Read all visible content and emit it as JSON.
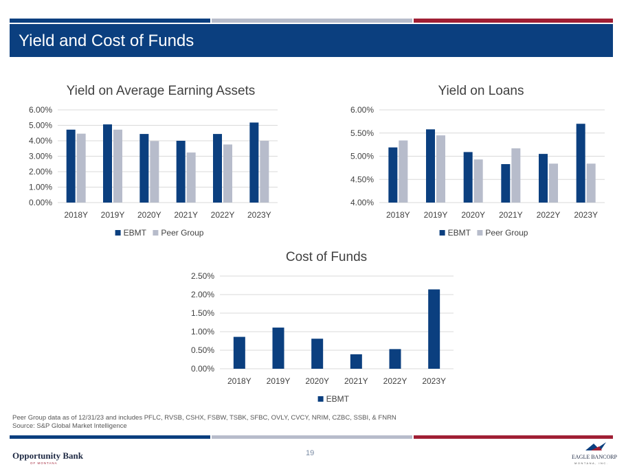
{
  "header": {
    "title": "Yield and Cost of Funds",
    "stripe_colors": [
      "#0b3f7f",
      "#b7bccb",
      "#a01f34"
    ]
  },
  "footnotes": {
    "peer_group": "Peer Group data as of 12/31/23 and includes PFLC, RVSB, CSHX, FSBW, TSBK, SFBC, OVLY, CVCY, NRIM, CZBC, SSBI, & FNRN",
    "source": "Source: S&P Global Market Intelligence"
  },
  "page_number": "19",
  "logos": {
    "left": {
      "name": "Opportunity Bank",
      "sub": "OF MONTANA"
    },
    "right": {
      "name": "EAGLE BANCORP",
      "sub": "MONTANA, INC."
    }
  },
  "colors": {
    "ebmt": "#0b3f7f",
    "peer": "#b7bccb",
    "grid": "#d9d9d9",
    "text": "#404040"
  },
  "chart_data": [
    {
      "id": "yield-earning-assets",
      "type": "bar",
      "title": "Yield on Average Earning Assets",
      "categories": [
        "2018Y",
        "2019Y",
        "2020Y",
        "2021Y",
        "2022Y",
        "2023Y"
      ],
      "series": [
        {
          "name": "EBMT",
          "values": [
            4.72,
            5.06,
            4.44,
            4.0,
            4.44,
            5.18
          ]
        },
        {
          "name": "Peer Group",
          "values": [
            4.46,
            4.72,
            3.98,
            3.24,
            3.76,
            4.0
          ]
        }
      ],
      "ylim": [
        0,
        6
      ],
      "yticks": [
        "0.00%",
        "1.00%",
        "2.00%",
        "3.00%",
        "4.00%",
        "5.00%",
        "6.00%"
      ],
      "grid": true,
      "legend": "bottom"
    },
    {
      "id": "yield-loans",
      "type": "bar",
      "title": "Yield on Loans",
      "categories": [
        "2018Y",
        "2019Y",
        "2020Y",
        "2021Y",
        "2022Y",
        "2023Y"
      ],
      "series": [
        {
          "name": "EBMT",
          "values": [
            5.19,
            5.58,
            5.09,
            4.83,
            5.05,
            5.7
          ]
        },
        {
          "name": "Peer Group",
          "values": [
            5.34,
            5.45,
            4.93,
            5.17,
            4.84,
            4.84
          ]
        }
      ],
      "ylim": [
        4,
        6
      ],
      "yticks": [
        "4.00%",
        "4.50%",
        "5.00%",
        "5.50%",
        "6.00%"
      ],
      "grid": true,
      "legend": "bottom"
    },
    {
      "id": "cost-of-funds",
      "type": "bar",
      "title": "Cost of Funds",
      "categories": [
        "2018Y",
        "2019Y",
        "2020Y",
        "2021Y",
        "2022Y",
        "2023Y"
      ],
      "series": [
        {
          "name": "EBMT",
          "values": [
            0.86,
            1.11,
            0.81,
            0.39,
            0.53,
            2.14
          ]
        }
      ],
      "ylim": [
        0,
        2.5
      ],
      "yticks": [
        "0.00%",
        "0.50%",
        "1.00%",
        "1.50%",
        "2.00%",
        "2.50%"
      ],
      "grid": true,
      "legend": "bottom"
    }
  ]
}
